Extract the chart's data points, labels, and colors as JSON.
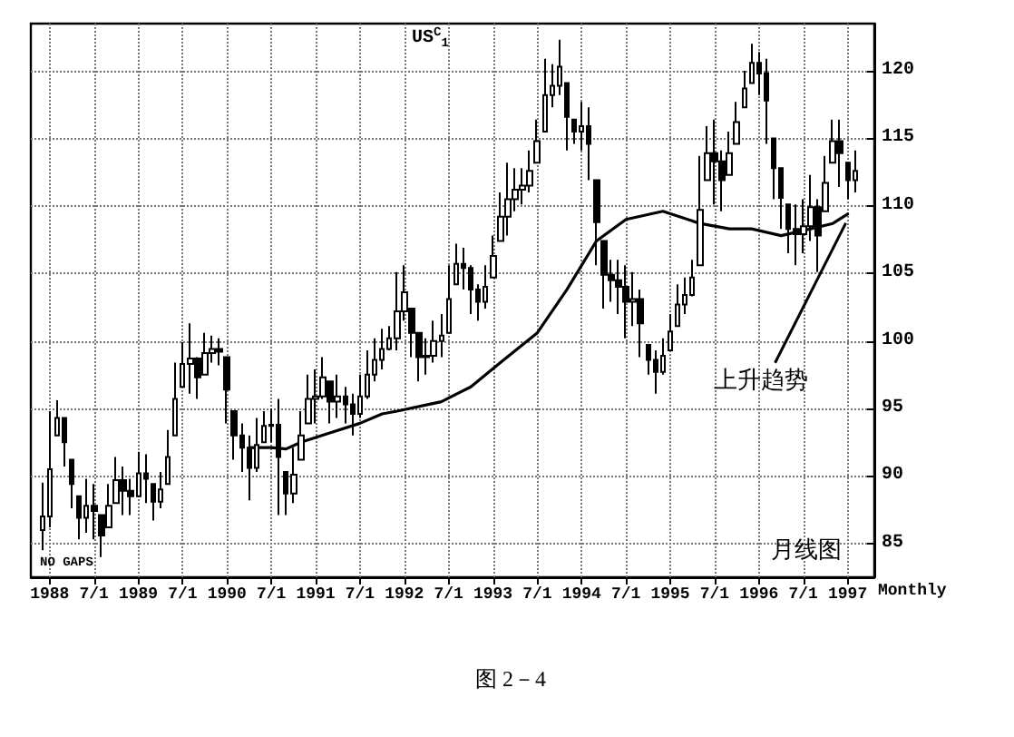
{
  "chart_data": {
    "type": "candlestick",
    "title": "US$^{C}$$_{1}$",
    "color": "#000000",
    "grid": true,
    "xlim": [
      "1987-10-15",
      "1997-04-20"
    ],
    "ylim": [
      82.5,
      123.5
    ],
    "xticks": [
      {
        "value": "1988-01",
        "label": "1988"
      },
      {
        "value": "1988-07",
        "label": "7/1"
      },
      {
        "value": "1989-01",
        "label": "1989"
      },
      {
        "value": "1989-07",
        "label": "7/1"
      },
      {
        "value": "1990-01",
        "label": "1990"
      },
      {
        "value": "1990-07",
        "label": "7/1"
      },
      {
        "value": "1991-01",
        "label": "1991"
      },
      {
        "value": "1991-07",
        "label": "7/1"
      },
      {
        "value": "1992-01",
        "label": "1992"
      },
      {
        "value": "1992-07",
        "label": "7/1"
      },
      {
        "value": "1993-01",
        "label": "1993"
      },
      {
        "value": "1993-07",
        "label": "7/1"
      },
      {
        "value": "1994-01",
        "label": "1994"
      },
      {
        "value": "1994-07",
        "label": "7/1"
      },
      {
        "value": "1995-01",
        "label": "1995"
      },
      {
        "value": "1995-07",
        "label": "7/1"
      },
      {
        "value": "1996-01",
        "label": "1996"
      },
      {
        "value": "1996-07",
        "label": "7/1"
      },
      {
        "value": "1997-01",
        "label": "1997"
      }
    ],
    "yticks": [
      85,
      90,
      95,
      100,
      105,
      110,
      115,
      120
    ],
    "annotations": [
      "NO GAPS",
      "月线图",
      "Monthly",
      "图 2－4",
      {
        "text": "上升趋势",
        "x": "1997-01",
        "y": 109
      }
    ],
    "x": [
      "1987-12",
      "1988-01",
      "1988-02",
      "1988-03",
      "1988-04",
      "1988-05",
      "1988-06",
      "1988-07",
      "1988-08",
      "1988-09",
      "1988-10",
      "1988-11",
      "1988-12",
      "1989-01",
      "1989-02",
      "1989-03",
      "1989-04",
      "1989-05",
      "1989-06",
      "1989-07",
      "1989-08",
      "1989-09",
      "1989-10",
      "1989-11",
      "1989-12",
      "1990-01",
      "1990-02",
      "1990-03",
      "1990-04",
      "1990-05",
      "1990-06",
      "1990-07",
      "1990-08",
      "1990-09",
      "1990-10",
      "1990-11",
      "1990-12",
      "1991-01",
      "1991-02",
      "1991-03",
      "1991-04",
      "1991-05",
      "1991-06",
      "1991-07",
      "1991-08",
      "1991-09",
      "1991-10",
      "1991-11",
      "1991-12",
      "1992-01",
      "1992-02",
      "1992-03",
      "1992-04",
      "1992-05",
      "1992-06",
      "1992-07",
      "1992-08",
      "1992-09",
      "1992-10",
      "1992-11",
      "1992-12",
      "1993-01",
      "1993-02",
      "1993-03",
      "1993-04",
      "1993-05",
      "1993-06",
      "1993-07",
      "1993-08",
      "1993-09",
      "1993-10",
      "1993-11",
      "1993-12",
      "1994-01",
      "1994-02",
      "1994-03",
      "1994-04",
      "1994-05",
      "1994-06",
      "1994-07",
      "1994-08",
      "1994-09",
      "1994-10",
      "1994-11",
      "1994-12",
      "1995-01",
      "1995-02",
      "1995-03",
      "1995-04",
      "1995-05",
      "1995-06",
      "1995-07",
      "1995-08",
      "1995-09",
      "1995-10",
      "1995-11",
      "1995-12",
      "1996-01",
      "1996-02",
      "1996-03",
      "1996-04",
      "1996-05",
      "1996-06",
      "1996-07",
      "1996-08",
      "1996-09",
      "1996-10",
      "1996-11",
      "1996-12",
      "1997-01",
      "1997-02"
    ],
    "ohlc": [
      [
        86.0,
        89.5,
        84.5,
        87.0
      ],
      [
        87.0,
        94.8,
        86.2,
        90.5
      ],
      [
        93.0,
        95.6,
        93.0,
        94.3
      ],
      [
        94.3,
        94.3,
        90.7,
        92.5
      ],
      [
        91.2,
        91.2,
        87.6,
        89.4
      ],
      [
        88.5,
        88.5,
        85.3,
        86.9
      ],
      [
        86.9,
        89.8,
        85.8,
        87.8
      ],
      [
        87.8,
        89.4,
        85.3,
        87.4
      ],
      [
        87.1,
        87.1,
        84.0,
        85.6
      ],
      [
        86.2,
        89.4,
        86.2,
        87.8
      ],
      [
        88.0,
        91.4,
        88.0,
        89.7
      ],
      [
        89.7,
        90.7,
        87.1,
        88.9
      ],
      [
        88.9,
        89.8,
        87.1,
        88.5
      ],
      [
        88.5,
        91.8,
        88.5,
        90.2
      ],
      [
        90.2,
        91.6,
        88.0,
        89.8
      ],
      [
        89.4,
        89.4,
        86.7,
        88.1
      ],
      [
        88.1,
        90.3,
        87.6,
        89.0
      ],
      [
        89.4,
        93.4,
        89.4,
        91.4
      ],
      [
        93.0,
        98.4,
        93.0,
        95.7
      ],
      [
        96.6,
        99.9,
        96.6,
        98.3
      ],
      [
        98.3,
        101.3,
        96.1,
        98.7
      ],
      [
        98.7,
        98.8,
        95.7,
        97.3
      ],
      [
        97.5,
        100.6,
        97.5,
        99.1
      ],
      [
        99.1,
        100.4,
        98.4,
        99.4
      ],
      [
        99.4,
        100.2,
        98.2,
        99.2
      ],
      [
        98.8,
        98.8,
        93.9,
        96.4
      ],
      [
        94.8,
        94.8,
        91.2,
        93.0
      ],
      [
        93.0,
        93.9,
        90.3,
        92.1
      ],
      [
        92.1,
        93.0,
        88.2,
        90.6
      ],
      [
        90.6,
        94.3,
        90.3,
        92.3
      ],
      [
        92.5,
        94.8,
        92.5,
        93.7
      ],
      [
        93.7,
        95.0,
        92.5,
        93.8
      ],
      [
        93.8,
        95.7,
        87.1,
        91.4
      ],
      [
        90.3,
        90.3,
        87.1,
        88.7
      ],
      [
        88.7,
        92.1,
        88.0,
        90.1
      ],
      [
        91.2,
        94.8,
        91.2,
        93.0
      ],
      [
        93.9,
        97.5,
        93.9,
        95.7
      ],
      [
        95.7,
        97.9,
        93.9,
        95.9
      ],
      [
        95.9,
        98.8,
        95.7,
        97.3
      ],
      [
        97.0,
        97.0,
        93.9,
        95.5
      ],
      [
        95.5,
        97.5,
        94.3,
        95.9
      ],
      [
        95.9,
        96.6,
        93.9,
        95.3
      ],
      [
        95.3,
        96.1,
        93.0,
        94.6
      ],
      [
        94.6,
        97.5,
        94.3,
        95.9
      ],
      [
        95.9,
        99.3,
        95.7,
        97.5
      ],
      [
        97.5,
        100.2,
        97.0,
        98.6
      ],
      [
        98.6,
        100.9,
        97.9,
        99.4
      ],
      [
        99.4,
        101.1,
        99.3,
        100.2
      ],
      [
        100.2,
        105.1,
        99.3,
        102.2
      ],
      [
        102.2,
        105.6,
        101.5,
        103.6
      ],
      [
        102.4,
        102.4,
        98.8,
        100.6
      ],
      [
        100.6,
        100.6,
        97.0,
        98.8
      ],
      [
        98.8,
        100.2,
        97.5,
        98.9
      ],
      [
        98.9,
        101.5,
        98.4,
        100.0
      ],
      [
        100.0,
        102.0,
        98.8,
        100.4
      ],
      [
        100.6,
        105.6,
        100.6,
        103.1
      ],
      [
        104.2,
        107.2,
        104.2,
        105.7
      ],
      [
        105.7,
        106.9,
        103.8,
        105.4
      ],
      [
        105.4,
        105.6,
        102.0,
        103.8
      ],
      [
        103.8,
        104.2,
        101.5,
        102.9
      ],
      [
        102.9,
        105.6,
        102.4,
        104.0
      ],
      [
        104.7,
        107.8,
        104.7,
        106.3
      ],
      [
        107.4,
        111.0,
        107.4,
        109.2
      ],
      [
        109.2,
        113.2,
        107.8,
        110.5
      ],
      [
        110.5,
        112.8,
        109.6,
        111.2
      ],
      [
        111.2,
        112.8,
        110.1,
        111.5
      ],
      [
        111.5,
        114.1,
        111.0,
        112.6
      ],
      [
        113.2,
        116.4,
        113.2,
        114.8
      ],
      [
        115.5,
        120.9,
        115.5,
        118.2
      ],
      [
        118.2,
        120.5,
        117.3,
        118.9
      ],
      [
        118.9,
        122.3,
        118.2,
        120.3
      ],
      [
        119.1,
        119.1,
        114.1,
        116.6
      ],
      [
        116.4,
        116.4,
        114.6,
        115.5
      ],
      [
        115.5,
        117.7,
        114.1,
        115.9
      ],
      [
        115.9,
        117.3,
        111.9,
        114.6
      ],
      [
        111.9,
        111.9,
        105.6,
        108.8
      ],
      [
        107.4,
        107.4,
        102.4,
        104.9
      ],
      [
        104.9,
        106.0,
        102.9,
        104.5
      ],
      [
        104.5,
        106.0,
        102.0,
        104.0
      ],
      [
        104.0,
        105.6,
        100.2,
        102.9
      ],
      [
        102.9,
        105.1,
        101.1,
        103.1
      ],
      [
        103.1,
        103.8,
        98.8,
        101.3
      ],
      [
        99.7,
        99.7,
        97.5,
        98.6
      ],
      [
        98.6,
        99.3,
        96.1,
        97.7
      ],
      [
        97.7,
        100.2,
        97.5,
        98.9
      ],
      [
        99.3,
        102.0,
        99.3,
        100.7
      ],
      [
        101.1,
        104.2,
        101.1,
        102.7
      ],
      [
        102.7,
        104.7,
        102.0,
        103.4
      ],
      [
        103.4,
        106.0,
        103.3,
        104.7
      ],
      [
        105.6,
        113.7,
        105.6,
        109.7
      ],
      [
        111.9,
        115.9,
        111.9,
        113.9
      ],
      [
        113.9,
        116.4,
        110.1,
        113.3
      ],
      [
        113.3,
        114.1,
        109.6,
        111.9
      ],
      [
        112.3,
        115.5,
        112.3,
        113.9
      ],
      [
        114.6,
        117.7,
        114.6,
        116.2
      ],
      [
        117.3,
        120.0,
        117.3,
        118.7
      ],
      [
        119.1,
        122.0,
        119.1,
        120.6
      ],
      [
        120.6,
        121.4,
        118.2,
        119.8
      ],
      [
        119.8,
        120.9,
        114.6,
        117.8
      ],
      [
        115.0,
        115.0,
        110.5,
        112.8
      ],
      [
        112.8,
        112.8,
        108.3,
        110.6
      ],
      [
        110.1,
        110.1,
        106.5,
        108.3
      ],
      [
        108.3,
        110.1,
        105.6,
        107.9
      ],
      [
        107.9,
        110.5,
        106.5,
        108.5
      ],
      [
        108.5,
        112.3,
        107.4,
        109.9
      ],
      [
        109.9,
        110.5,
        105.1,
        107.8
      ],
      [
        109.6,
        113.7,
        109.6,
        111.7
      ],
      [
        113.2,
        116.4,
        113.2,
        114.8
      ],
      [
        114.8,
        116.4,
        111.4,
        113.9
      ],
      [
        113.2,
        113.2,
        110.5,
        111.9
      ],
      [
        111.9,
        114.1,
        111.0,
        112.6
      ]
    ],
    "series": [
      {
        "type": "line",
        "color": "#000000",
        "x": [
          "1990-04",
          "1990-07",
          "1990-09",
          "1990-11",
          "1991-03",
          "1991-07",
          "1991-10",
          "1991-12",
          "1992-06",
          "1992-10",
          "1993-02",
          "1993-07",
          "1993-11",
          "1994-03",
          "1994-07",
          "1994-12",
          "1995-05",
          "1995-09",
          "1995-12",
          "1996-04",
          "1996-08",
          "1996-11",
          "1997-01"
        ],
        "values": [
          92.1,
          92.1,
          92.0,
          92.5,
          93.2,
          93.9,
          94.6,
          94.8,
          95.5,
          96.6,
          98.4,
          100.6,
          103.8,
          107.4,
          109.0,
          109.6,
          108.7,
          108.3,
          108.3,
          107.8,
          108.3,
          108.7,
          109.4
        ]
      }
    ]
  }
}
